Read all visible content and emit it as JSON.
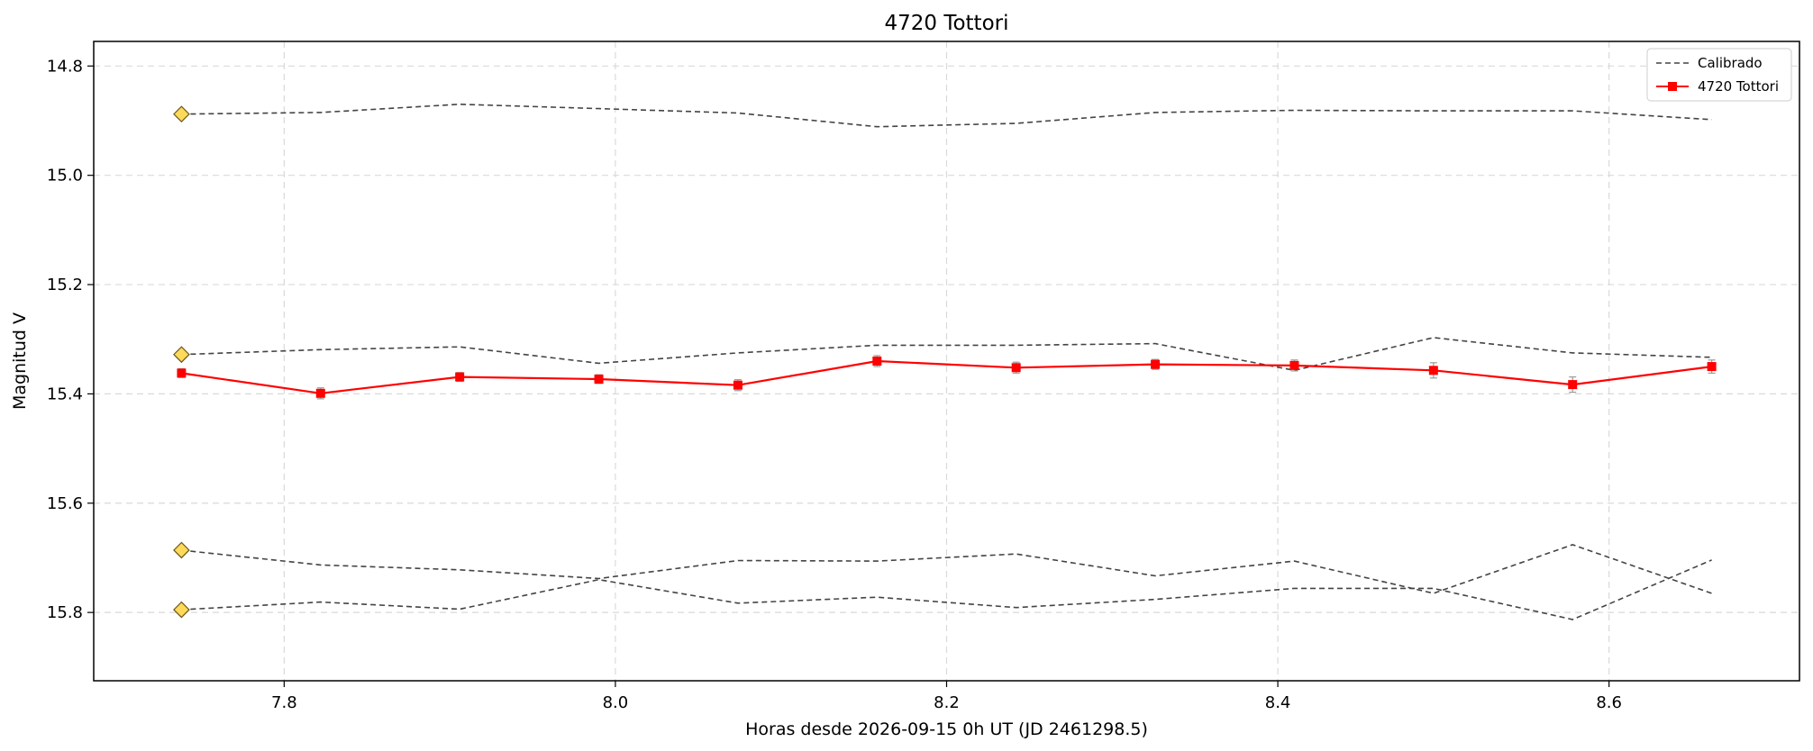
{
  "chart_data": {
    "type": "line",
    "title": "4720 Tottori",
    "xlabel": "Horas desde 2026-09-15 0h UT (JD 2461298.5)",
    "ylabel": "Magnitud V",
    "xlim": [
      7.685,
      8.715
    ],
    "ylim": [
      15.925,
      14.755
    ],
    "y_inverted": true,
    "grid": true,
    "legend_placement": "top-right",
    "x_ticks": [
      7.8,
      8.0,
      8.2,
      8.4,
      8.6
    ],
    "x_tick_labels": [
      "7.8",
      "8.0",
      "8.2",
      "8.4",
      "8.6"
    ],
    "y_ticks": [
      14.8,
      15.0,
      15.2,
      15.4,
      15.6,
      15.8
    ],
    "y_tick_labels": [
      "14.8",
      "15.0",
      "15.2",
      "15.4",
      "15.6",
      "15.8"
    ],
    "x": [
      7.738,
      7.822,
      7.906,
      7.99,
      8.074,
      8.158,
      8.242,
      8.326,
      8.41,
      8.494,
      8.578,
      8.662
    ],
    "legend": [
      {
        "label": "Calibrado",
        "style": "dashed",
        "color": "#444444"
      },
      {
        "label": "4720 Tottori",
        "style": "solid-square",
        "color": "#ff0000"
      }
    ],
    "series": [
      {
        "name": "4720 Tottori",
        "color": "#ff0000",
        "marker": "square",
        "values": [
          15.362,
          15.399,
          15.369,
          15.373,
          15.384,
          15.34,
          15.352,
          15.346,
          15.348,
          15.357,
          15.383,
          15.35
        ],
        "errors": [
          0.008,
          0.01,
          0.008,
          0.008,
          0.01,
          0.01,
          0.01,
          0.009,
          0.01,
          0.014,
          0.014,
          0.012
        ]
      },
      {
        "color": "#444444",
        "style": "dashed",
        "values": [
          14.888,
          14.885,
          14.87,
          14.878,
          14.886,
          14.911,
          14.905,
          14.885,
          14.881,
          14.882,
          14.882,
          14.898
        ]
      },
      {
        "color": "#444444",
        "style": "dashed",
        "values": [
          15.328,
          15.319,
          15.314,
          15.344,
          15.325,
          15.311,
          15.311,
          15.308,
          15.357,
          15.297,
          15.325,
          15.333
        ]
      },
      {
        "color": "#444444",
        "style": "dashed",
        "values": [
          15.686,
          15.713,
          15.722,
          15.738,
          15.705,
          15.706,
          15.693,
          15.733,
          15.706,
          15.765,
          15.676,
          15.765
        ]
      },
      {
        "color": "#444444",
        "style": "dashed",
        "values": [
          15.795,
          15.781,
          15.794,
          15.74,
          15.783,
          15.772,
          15.791,
          15.776,
          15.756,
          15.756,
          15.813,
          15.704
        ]
      }
    ],
    "markers": {
      "shape": "diamond",
      "fill": "#ffd95a",
      "stroke": "#6b5a1a",
      "x": 7.738,
      "values": [
        14.888,
        15.328,
        15.686,
        15.795
      ]
    }
  }
}
